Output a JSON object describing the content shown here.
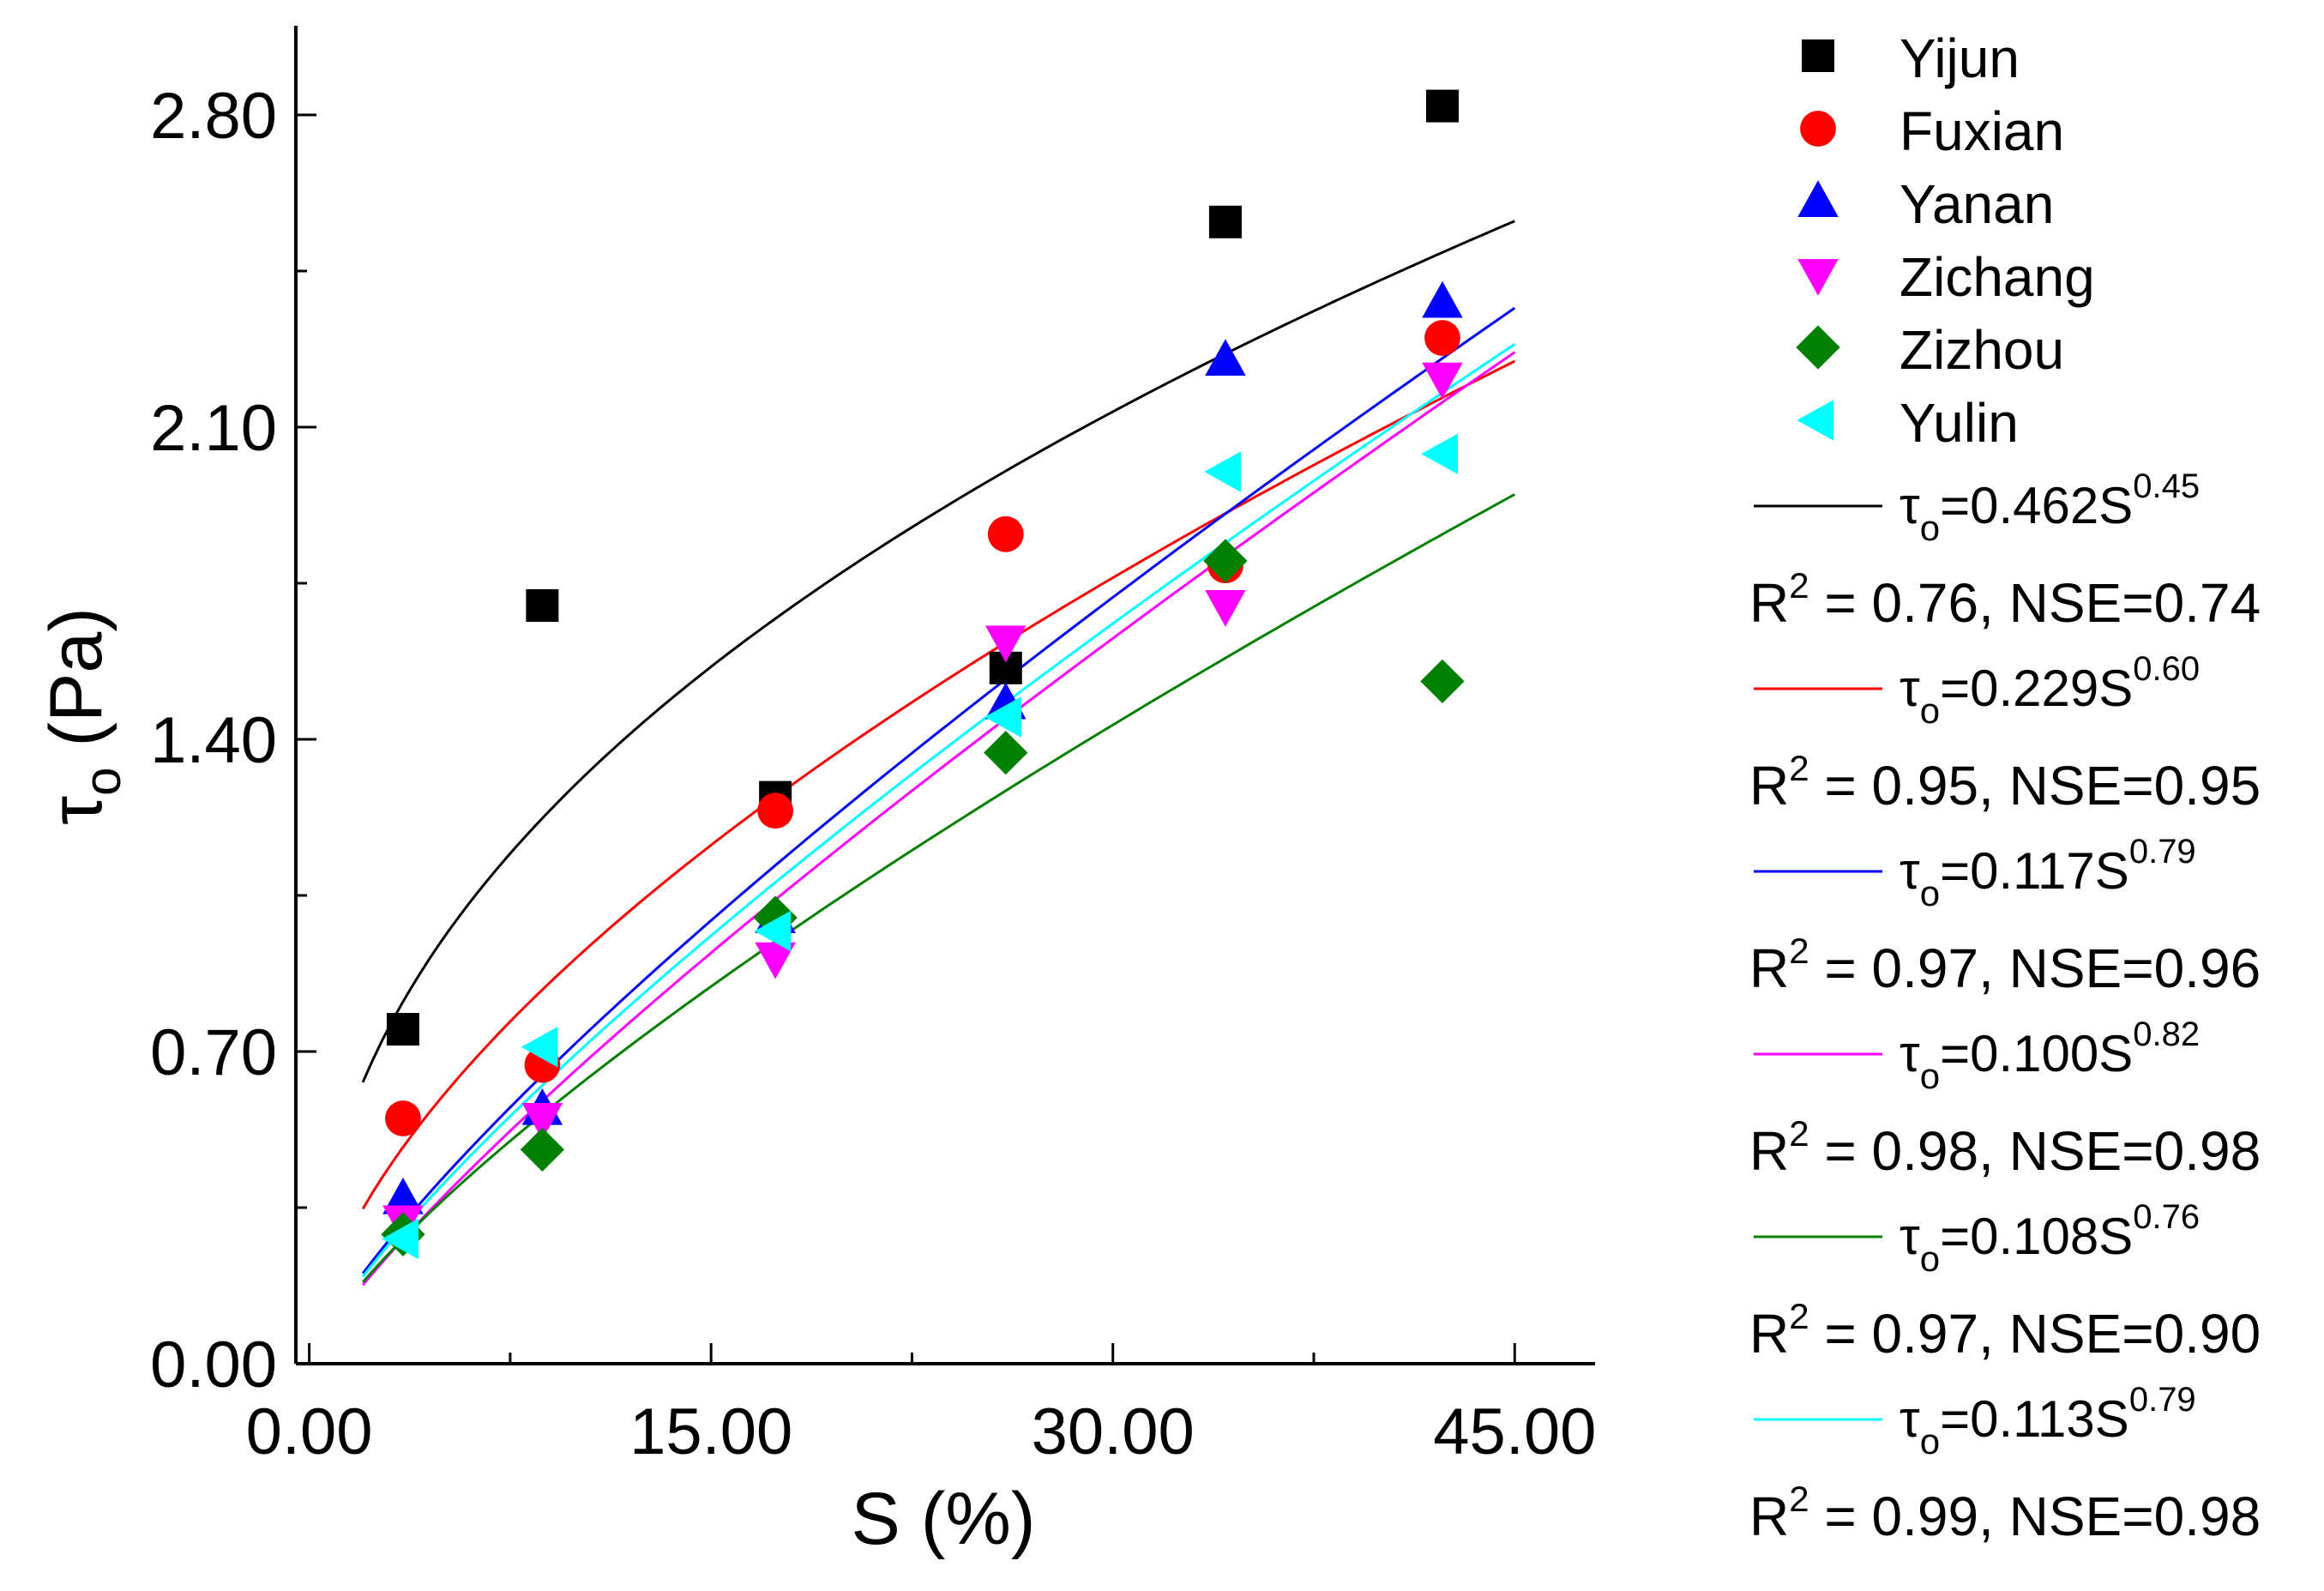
{
  "chart_data": {
    "type": "scatter",
    "title": "",
    "xlabel": "S (%)",
    "ylabel_main": "τ",
    "ylabel_sub": "o",
    "ylabel_unit": " (Pa)",
    "xlim": [
      -0.5,
      48
    ],
    "ylim": [
      0,
      3.0
    ],
    "xticks": [
      0,
      15,
      30,
      45
    ],
    "xtick_labels": [
      "0.00",
      "15.00",
      "30.00",
      "45.00"
    ],
    "xminor": [
      7.5,
      22.5,
      37.5
    ],
    "yticks": [
      0,
      0.7,
      1.4,
      2.1,
      2.8
    ],
    "ytick_labels": [
      "0.00",
      "0.70",
      "1.40",
      "2.10",
      "2.80"
    ],
    "yminor": [
      0.35,
      1.05,
      1.75,
      2.45
    ],
    "fit_x_range": [
      2,
      45
    ],
    "series": [
      {
        "name": "Yijun",
        "marker": "square",
        "color": "#000000",
        "x": [
          3.5,
          8.7,
          17.4,
          26,
          34.2,
          42.3
        ],
        "y": [
          0.75,
          1.7,
          1.27,
          1.56,
          2.56,
          2.82
        ]
      },
      {
        "name": "Fuxian",
        "marker": "circle",
        "color": "#ff0000",
        "x": [
          3.5,
          8.7,
          17.4,
          26,
          34.2,
          42.3
        ],
        "y": [
          0.55,
          0.67,
          1.24,
          1.86,
          1.79,
          2.3
        ]
      },
      {
        "name": "Yanan",
        "marker": "triangle-up",
        "color": "#0000ff",
        "x": [
          3.5,
          8.7,
          17.4,
          26,
          34.2,
          42.3
        ],
        "y": [
          0.37,
          0.57,
          1.0,
          1.48,
          2.25,
          2.38
        ]
      },
      {
        "name": "Zichang",
        "marker": "triangle-down",
        "color": "#ff00ff",
        "x": [
          3.5,
          8.7,
          17.4,
          26,
          34.2,
          42.3
        ],
        "y": [
          0.32,
          0.55,
          0.91,
          1.62,
          1.7,
          2.21
        ]
      },
      {
        "name": "Zizhou",
        "marker": "diamond",
        "color": "#008000",
        "x": [
          3.5,
          8.7,
          17.4,
          26,
          34.2,
          42.3
        ],
        "y": [
          0.29,
          0.48,
          1.0,
          1.37,
          1.8,
          1.53
        ]
      },
      {
        "name": "Yulin",
        "marker": "triangle-left",
        "color": "#00ffff",
        "x": [
          3.5,
          8.7,
          17.4,
          26,
          34.2,
          42.3
        ],
        "y": [
          0.28,
          0.71,
          0.97,
          1.45,
          2.0,
          2.04
        ]
      }
    ],
    "fits": [
      {
        "color": "#000000",
        "a": 0.462,
        "b": 0.45,
        "eq_lhs": "τ",
        "eq_sub": "o",
        "eq_main": "=0.462S",
        "eq_exp": "0.45",
        "r2_lhs": "R",
        "r2_sup": "2",
        "r2_rest": " = 0.76, NSE=0.74"
      },
      {
        "color": "#ff0000",
        "a": 0.229,
        "b": 0.6,
        "eq_lhs": "τ",
        "eq_sub": "o",
        "eq_main": "=0.229S",
        "eq_exp": "0.60",
        "r2_lhs": "R",
        "r2_sup": "2",
        "r2_rest": " = 0.95, NSE=0.95"
      },
      {
        "color": "#0000ff",
        "a": 0.117,
        "b": 0.79,
        "eq_lhs": "τ",
        "eq_sub": "o",
        "eq_main": "=0.117S",
        "eq_exp": "0.79",
        "r2_lhs": "R",
        "r2_sup": "2",
        "r2_rest": " = 0.97, NSE=0.96"
      },
      {
        "color": "#ff00ff",
        "a": 0.1,
        "b": 0.82,
        "eq_lhs": "τ",
        "eq_sub": "o",
        "eq_main": "=0.100S",
        "eq_exp": "0.82",
        "r2_lhs": "R",
        "r2_sup": "2",
        "r2_rest": " = 0.98, NSE=0.98"
      },
      {
        "color": "#008000",
        "a": 0.108,
        "b": 0.76,
        "eq_lhs": "τ",
        "eq_sub": "o",
        "eq_main": "=0.108S",
        "eq_exp": "0.76",
        "r2_lhs": "R",
        "r2_sup": "2",
        "r2_rest": " = 0.97, NSE=0.90"
      },
      {
        "color": "#00ffff",
        "a": 0.113,
        "b": 0.79,
        "eq_lhs": "τ",
        "eq_sub": "o",
        "eq_main": "=0.113S",
        "eq_exp": "0.79",
        "r2_lhs": "R",
        "r2_sup": "2",
        "r2_rest": " = 0.99, NSE=0.98"
      }
    ],
    "legend_position": "right-outside"
  }
}
